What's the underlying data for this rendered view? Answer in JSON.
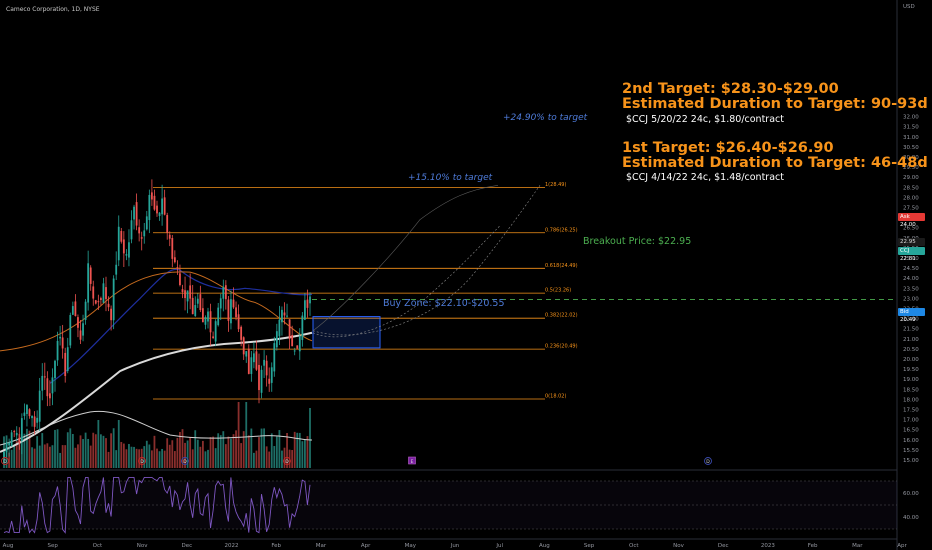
{
  "header": {
    "title": "Cameco Corporation, 1D, NYSE"
  },
  "colors": {
    "background": "#000000",
    "up": "#26a69a",
    "down": "#ef5350",
    "fib": "#f7931a",
    "sma200": "#d9d9d9",
    "ema": "#1e2f9e",
    "sma50": "#c56a1e",
    "zone": "#2962ff",
    "breakout": "#4caf50"
  },
  "annotations": {
    "target2_line1": "2nd Target: $28.30-$29.00",
    "target2_line2": "Estimated Duration to Target: 90-93d",
    "target2_option": "$CCJ 5/20/22 24c, $1.80/contract",
    "target1_line1": "1st Target: $26.40-$26.90",
    "target1_line2": "Estimated Duration to Target: 46-48d",
    "target1_option": "$CCJ 4/14/22 24c, $1.48/contract",
    "pct_target2": "+24.90% to target",
    "pct_target1": "+15.10% to target",
    "breakout": "Breakout Price: $22.95",
    "buy_zone": "Buy Zone: $22.10-$20.55"
  },
  "price_tags": {
    "ask_label": "Ask",
    "ask_value": "24.00",
    "last_label": "CCJ",
    "last_value": "22.81",
    "last_value_top": "22.95",
    "bid_label": "Bid",
    "bid_value": "20.49"
  },
  "event_markers": [
    "D",
    "D",
    "D",
    "D",
    "E",
    "D"
  ],
  "chart_data": {
    "type": "candlestick",
    "x_axis_labels": [
      "Aug",
      "Sep",
      "Oct",
      "Nov",
      "Dec",
      "2022",
      "Feb",
      "Mar",
      "Apr",
      "May",
      "Jun",
      "Jul",
      "Aug",
      "Sep",
      "Oct",
      "Nov",
      "Dec",
      "2023",
      "Feb",
      "Mar",
      "Apr"
    ],
    "y_axis_labels": [
      "32.00",
      "31.50",
      "31.00",
      "30.50",
      "30.00",
      "29.50",
      "29.00",
      "28.50",
      "28.00",
      "27.50",
      "27.00",
      "26.50",
      "26.00",
      "25.50",
      "25.00",
      "24.50",
      "24.00",
      "23.50",
      "23.00",
      "22.50",
      "22.00",
      "21.50",
      "21.00",
      "20.50",
      "20.00",
      "19.50",
      "19.00",
      "18.50",
      "18.00",
      "17.50",
      "17.00",
      "16.50",
      "16.00",
      "15.50",
      "15.00"
    ],
    "y_axis_unit": "USD",
    "ylim": [
      14.9,
      32.6
    ],
    "fib_levels": [
      {
        "label": "1(28.49)",
        "value": 28.49
      },
      {
        "label": "0.786(26.25)",
        "value": 26.25
      },
      {
        "label": "0.618(24.49)",
        "value": 24.49
      },
      {
        "label": "0.5(23.26)",
        "value": 23.26
      },
      {
        "label": "0.382(22.02)",
        "value": 22.02
      },
      {
        "label": "0.236(20.49)",
        "value": 20.49
      },
      {
        "label": "0(18.02)",
        "value": 18.02
      }
    ],
    "breakout_price": 22.95,
    "buy_zone": [
      20.55,
      22.1
    ],
    "close_path": [
      [
        0,
        15.4
      ],
      [
        3,
        16.6
      ],
      [
        6,
        16.2
      ],
      [
        9,
        17.8
      ],
      [
        12,
        16.5
      ],
      [
        15,
        19.4
      ],
      [
        18,
        18.0
      ],
      [
        21,
        21.3
      ],
      [
        24,
        19.5
      ],
      [
        27,
        22.9
      ],
      [
        30,
        20.8
      ],
      [
        33,
        24.3
      ],
      [
        36,
        22.7
      ],
      [
        39,
        23.5
      ],
      [
        42,
        22.3
      ],
      [
        45,
        26.2
      ],
      [
        48,
        25.1
      ],
      [
        51,
        27.4
      ],
      [
        54,
        26.0
      ],
      [
        57,
        28.2
      ],
      [
        60,
        26.8
      ],
      [
        62,
        28.0
      ],
      [
        64,
        26.3
      ],
      [
        66,
        25.0
      ],
      [
        68,
        24.7
      ],
      [
        70,
        23.1
      ],
      [
        72,
        23.6
      ],
      [
        74,
        21.9
      ],
      [
        76,
        22.6
      ],
      [
        78,
        21.6
      ],
      [
        80,
        22.3
      ],
      [
        82,
        21.2
      ],
      [
        84,
        22.8
      ],
      [
        86,
        23.4
      ],
      [
        88,
        22.1
      ],
      [
        90,
        23.0
      ],
      [
        92,
        21.4
      ],
      [
        94,
        20.6
      ],
      [
        96,
        19.3
      ],
      [
        98,
        20.2
      ],
      [
        100,
        18.8
      ],
      [
        102,
        19.6
      ],
      [
        104,
        19.2
      ],
      [
        106,
        20.6
      ],
      [
        108,
        21.8
      ],
      [
        110,
        22.4
      ],
      [
        112,
        21.3
      ],
      [
        114,
        20.8
      ],
      [
        116,
        21.1
      ],
      [
        118,
        22.6
      ],
      [
        120,
        23.1
      ]
    ],
    "volume_bars": 121,
    "rsi_axis_labels": [
      "60.00",
      "40.00"
    ],
    "rsi_ylim": [
      25,
      75
    ]
  }
}
